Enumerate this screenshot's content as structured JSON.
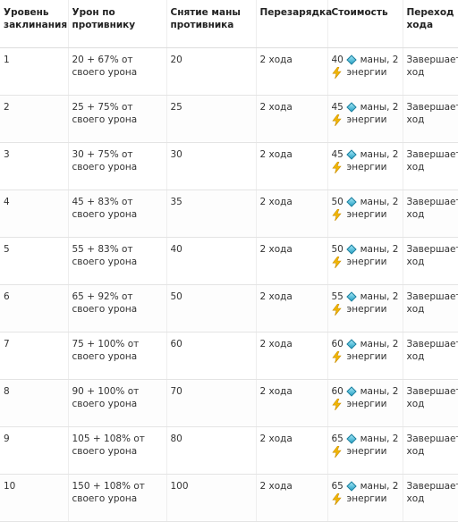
{
  "table": {
    "headers": {
      "level": "Уровень заклинания",
      "damage": "Урон по противнику",
      "mana_drain": "Снятие маны противника",
      "cooldown": "Перезарядка",
      "cost": "Стоимость",
      "turn": "Переход хода"
    },
    "rows": [
      {
        "level": "1",
        "damage": "20 + 67% от своего урона",
        "mana_drain": "20",
        "cooldown": "2 хода",
        "cost_mana": "40",
        "mana_label": "маны, 2",
        "energy_label": "энергии",
        "turn": "Завершает ход"
      },
      {
        "level": "2",
        "damage": "25 + 75% от своего урона",
        "mana_drain": "25",
        "cooldown": "2 хода",
        "cost_mana": "45",
        "mana_label": "маны, 2",
        "energy_label": "энергии",
        "turn": "Завершает ход"
      },
      {
        "level": "3",
        "damage": "30 + 75% от своего урона",
        "mana_drain": "30",
        "cooldown": "2 хода",
        "cost_mana": "45",
        "mana_label": "маны, 2",
        "energy_label": "энергии",
        "turn": "Завершает ход"
      },
      {
        "level": "4",
        "damage": "45 + 83% от своего урона",
        "mana_drain": "35",
        "cooldown": "2 хода",
        "cost_mana": "50",
        "mana_label": "маны, 2",
        "energy_label": "энергии",
        "turn": "Завершает ход"
      },
      {
        "level": "5",
        "damage": "55 + 83% от своего урона",
        "mana_drain": "40",
        "cooldown": "2 хода",
        "cost_mana": "50",
        "mana_label": "маны, 2",
        "energy_label": "энергии",
        "turn": "Завершает ход"
      },
      {
        "level": "6",
        "damage": "65 + 92% от своего урона",
        "mana_drain": "50",
        "cooldown": "2 хода",
        "cost_mana": "55",
        "mana_label": "маны, 2",
        "energy_label": "энергии",
        "turn": "Завершает ход"
      },
      {
        "level": "7",
        "damage": "75 + 100% от своего урона",
        "mana_drain": "60",
        "cooldown": "2 хода",
        "cost_mana": "60",
        "mana_label": "маны, 2",
        "energy_label": "энергии",
        "turn": "Завершает ход"
      },
      {
        "level": "8",
        "damage": "90 + 100% от своего урона",
        "mana_drain": "70",
        "cooldown": "2 хода",
        "cost_mana": "60",
        "mana_label": "маны, 2",
        "energy_label": "энергии",
        "turn": "Завершает ход"
      },
      {
        "level": "9",
        "damage": "105 + 108% от своего урона",
        "mana_drain": "80",
        "cooldown": "2 хода",
        "cost_mana": "65",
        "mana_label": "маны, 2",
        "energy_label": "энергии",
        "turn": "Завершает ход"
      },
      {
        "level": "10",
        "damage": "150 + 108% от своего урона",
        "mana_drain": "100",
        "cooldown": "2 хода",
        "cost_mana": "65",
        "mana_label": "маны, 2",
        "energy_label": "энергии",
        "turn": "Завершает ход"
      }
    ]
  },
  "icons": {
    "mana": "mana-crystal-icon",
    "energy": "energy-bolt-icon"
  },
  "colors": {
    "text": "#333333",
    "mana_gem": "#2aa3c7",
    "energy_bolt": "#f2b705",
    "grid": "#e4e4e4"
  }
}
